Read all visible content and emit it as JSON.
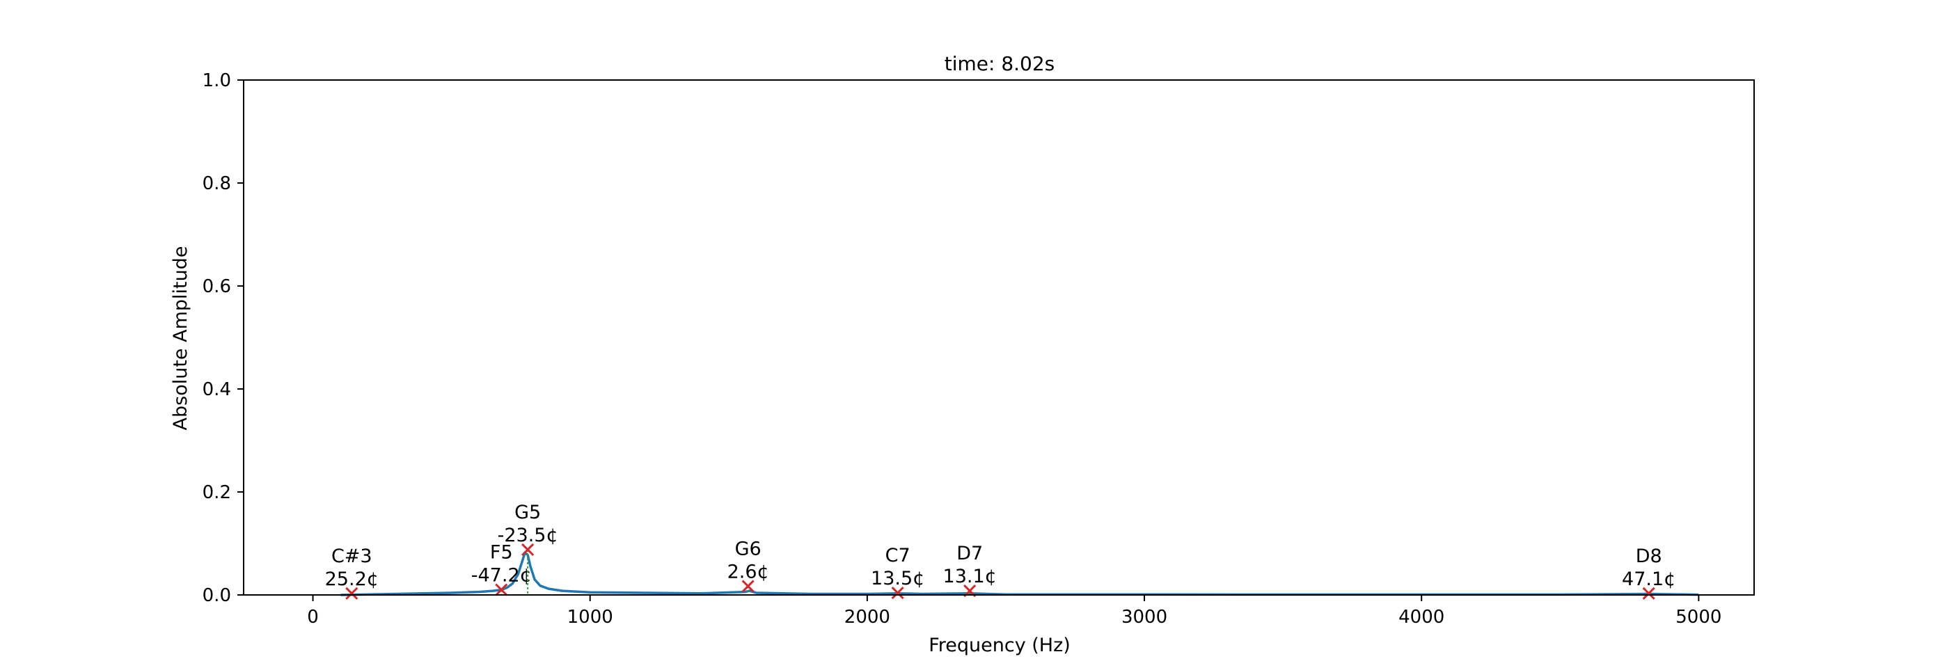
{
  "chart_data": {
    "type": "line",
    "title": "time: 8.02s",
    "xlabel": "Frequency (Hz)",
    "ylabel": "Absolute Amplitude",
    "xlim": [
      -250,
      5200
    ],
    "ylim": [
      0,
      1.0
    ],
    "xticks": [
      0,
      1000,
      2000,
      3000,
      4000,
      5000
    ],
    "yticks": [
      0.0,
      0.2,
      0.4,
      0.6,
      0.8,
      1.0
    ],
    "xtick_labels": [
      "0",
      "1000",
      "2000",
      "3000",
      "4000",
      "5000"
    ],
    "ytick_labels": [
      "0.0",
      "0.2",
      "0.4",
      "0.6",
      "0.8",
      "1.0"
    ],
    "grid": false,
    "line_color": "#1f77b4",
    "marker_color": "#d62728",
    "guide_color": "#2ca02c",
    "spectrum": {
      "x": [
        100,
        200,
        300,
        400,
        500,
        550,
        600,
        650,
        680,
        700,
        720,
        740,
        755,
        765,
        775,
        785,
        800,
        820,
        850,
        900,
        1000,
        1200,
        1400,
        1560,
        1575,
        1600,
        1800,
        2000,
        2110,
        2200,
        2370,
        2500,
        3000,
        3500,
        4000,
        4500,
        4820,
        5000
      ],
      "y": [
        0.0,
        0.001,
        0.002,
        0.003,
        0.004,
        0.005,
        0.006,
        0.008,
        0.01,
        0.014,
        0.022,
        0.04,
        0.065,
        0.082,
        0.078,
        0.055,
        0.03,
        0.018,
        0.012,
        0.008,
        0.005,
        0.004,
        0.003,
        0.006,
        0.008,
        0.004,
        0.002,
        0.002,
        0.003,
        0.002,
        0.003,
        0.001,
        0.001,
        0.0008,
        0.0008,
        0.0008,
        0.002,
        0.0005
      ]
    },
    "peaks": [
      {
        "note": "C#3",
        "cents": "25.2¢",
        "freq": 140,
        "amp": 0.003
      },
      {
        "note": "F5",
        "cents": "-47.2¢",
        "freq": 680,
        "amp": 0.01
      },
      {
        "note": "G5",
        "cents": "-23.5¢",
        "freq": 775,
        "amp": 0.088
      },
      {
        "note": "G6",
        "cents": "2.6¢",
        "freq": 1570,
        "amp": 0.017
      },
      {
        "note": "C7",
        "cents": "13.5¢",
        "freq": 2110,
        "amp": 0.004
      },
      {
        "note": "D7",
        "cents": "13.1¢",
        "freq": 2370,
        "amp": 0.008
      },
      {
        "note": "D8",
        "cents": "47.1¢",
        "freq": 4820,
        "amp": 0.003
      }
    ]
  }
}
